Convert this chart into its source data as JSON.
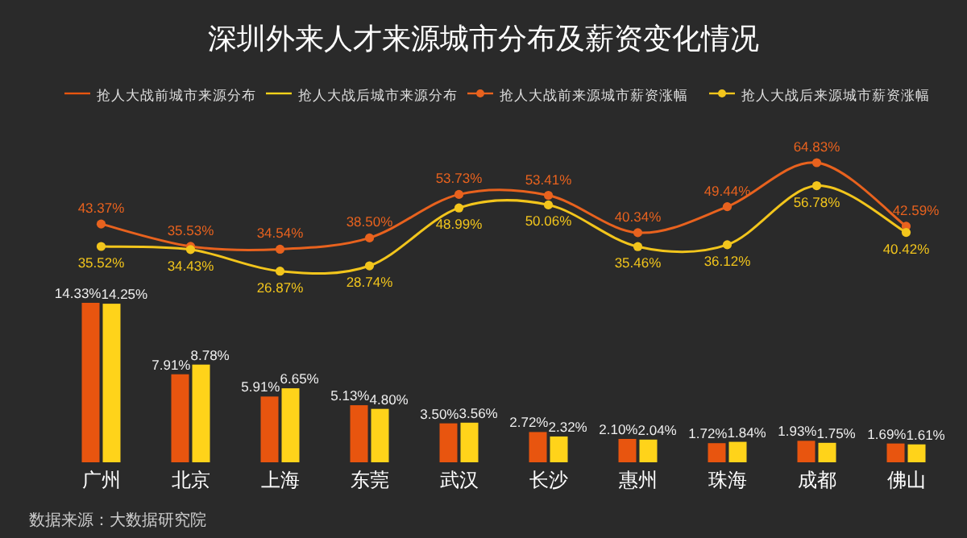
{
  "chart_data": [
    {
      "type": "line",
      "title": "深圳外来人才来源城市分布及薪资变化情况",
      "categories": [
        null,
        null,
        null,
        null,
        null,
        null,
        null,
        null,
        null,
        null
      ],
      "series": [
        {
          "name": "抢人大战前来源城市薪资涨幅",
          "color": "#e8621e",
          "values": [
            43.37,
            35.53,
            34.54,
            38.5,
            53.73,
            53.41,
            40.34,
            49.44,
            64.83,
            42.59
          ],
          "value_labels": [
            "43.37%",
            "35.53%",
            "34.54%",
            "38.50%",
            "53.73%",
            "53.41%",
            "40.34%",
            "49.44%",
            "64.83%",
            "42.59%"
          ]
        },
        {
          "name": "抢人大战后来源城市薪资涨幅",
          "color": "#f2c51c",
          "values": [
            35.52,
            34.43,
            26.87,
            28.74,
            48.99,
            50.06,
            35.46,
            36.12,
            56.78,
            40.42
          ],
          "value_labels": [
            "35.52%",
            "34.43%",
            "26.87%",
            "28.74%",
            "48.99%",
            "50.06%",
            "35.46%",
            "36.12%",
            "56.78%",
            "40.42%"
          ]
        }
      ],
      "marker": "circle",
      "legend": "top",
      "grid": false
    },
    {
      "type": "bar",
      "categories": [
        "广州",
        "北京",
        "上海",
        "东莞",
        "武汉",
        "长沙",
        "惠州",
        "珠海",
        "成都",
        "佛山"
      ],
      "series": [
        {
          "name": "抢人大战前城市来源分布",
          "color": "#e8550f",
          "values": [
            14.33,
            7.91,
            5.91,
            5.13,
            3.5,
            2.72,
            2.1,
            1.72,
            1.93,
            1.69
          ],
          "value_labels": [
            "14.33%",
            "7.91%",
            "5.91%",
            "5.13%",
            "3.50%",
            "2.72%",
            "2.10%",
            "1.72%",
            "1.93%",
            "1.69%"
          ]
        },
        {
          "name": "抢人大战后城市来源分布",
          "color": "#ffd31a",
          "values": [
            14.25,
            8.78,
            6.65,
            4.8,
            3.56,
            2.32,
            2.04,
            1.84,
            1.75,
            1.61
          ],
          "value_labels": [
            "14.25%",
            "8.78%",
            "6.65%",
            "4.80%",
            "3.56%",
            "2.32%",
            "2.04%",
            "1.84%",
            "1.75%",
            "1.61%"
          ]
        }
      ],
      "legend": "top",
      "grid": false,
      "annotations": [
        "数据来源：大数据研究院"
      ]
    }
  ]
}
